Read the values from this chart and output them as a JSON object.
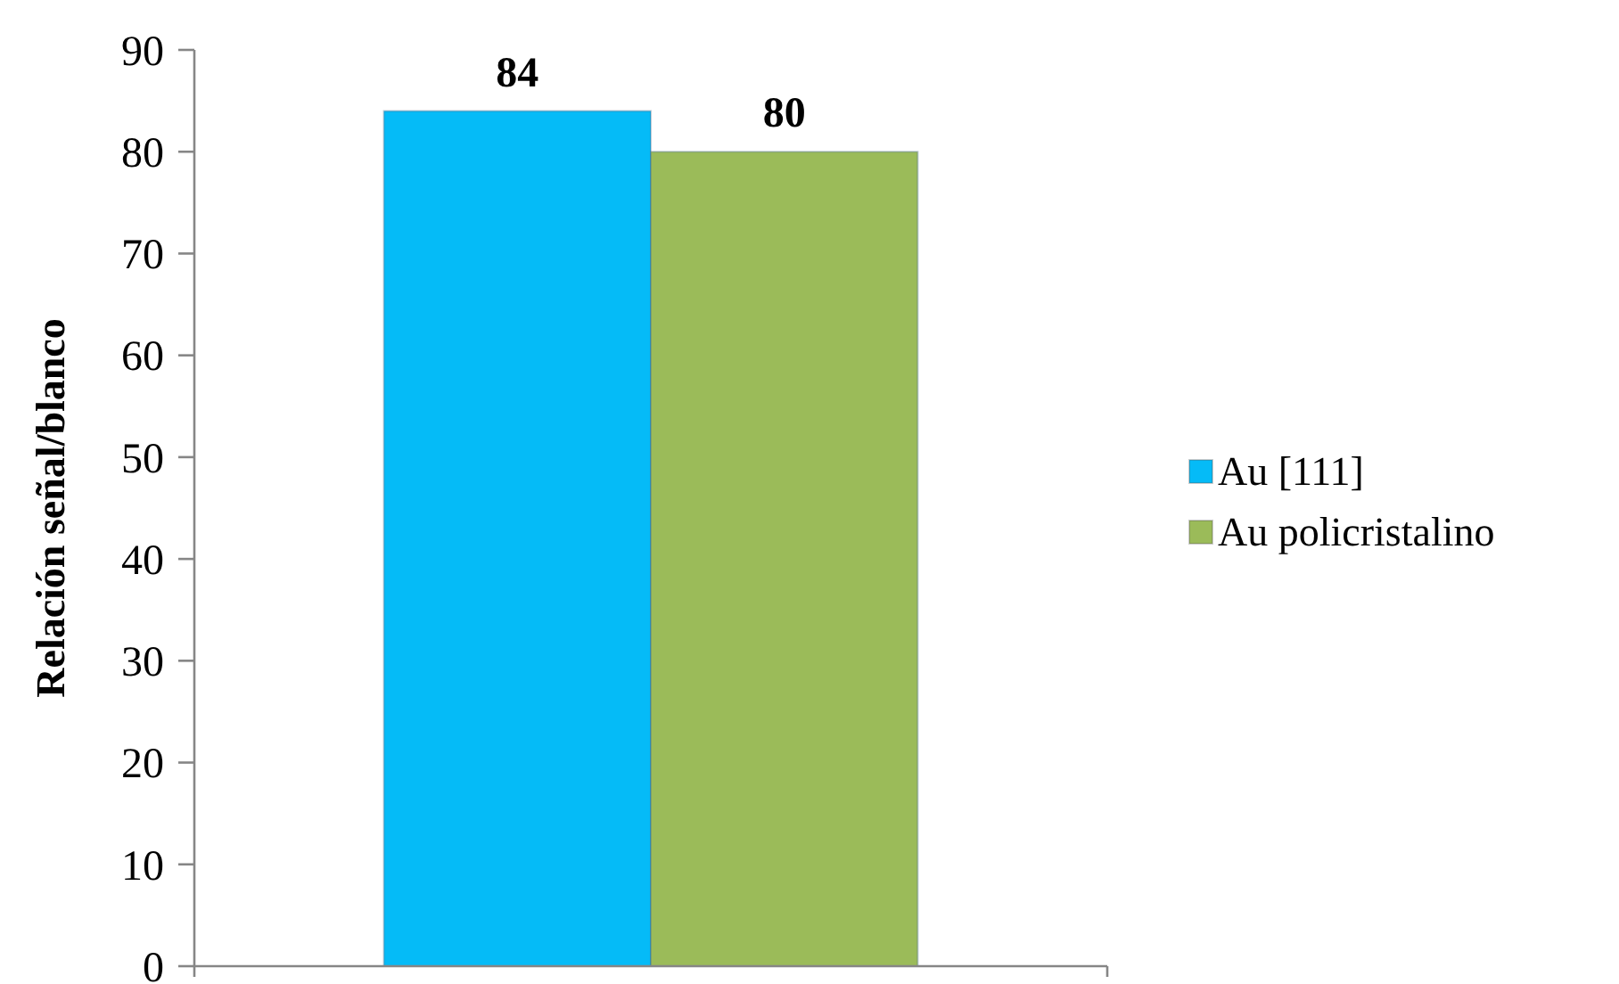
{
  "chart_data": {
    "type": "bar",
    "ylabel": "Relación señal/blanco",
    "categories": [
      null
    ],
    "series": [
      {
        "name": "Au [111]",
        "color": "#05bbf7",
        "values": [
          84
        ]
      },
      {
        "name": "Au policristalino",
        "color": "#9bbb59",
        "values": [
          80
        ]
      }
    ],
    "ylim": [
      0,
      90
    ],
    "yticks": [
      0,
      10,
      20,
      30,
      40,
      50,
      60,
      70,
      80,
      90
    ],
    "grid": false,
    "legend": "right",
    "data_labels": true
  }
}
